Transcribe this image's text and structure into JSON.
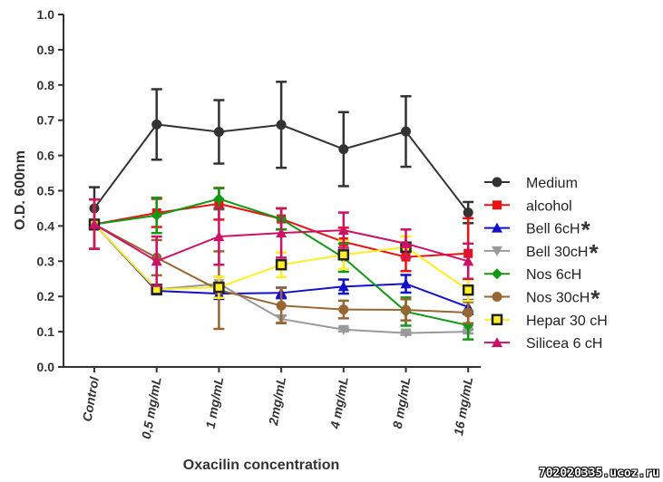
{
  "chart_data": {
    "type": "line",
    "xlabel": "Oxacilin concentration",
    "ylabel": "O.D. 600nm",
    "categories": [
      "Control",
      "0,5 mg/mL",
      "1 mg/mL",
      "2mg/mL",
      "4 mg/mL",
      "8 mg/mL",
      "16 mg/mL"
    ],
    "ylim": [
      0,
      1.0
    ],
    "yticks": [
      "0.0",
      "0.1",
      "0.2",
      "0.3",
      "0.4",
      "0.5",
      "0.6",
      "0.7",
      "0.8",
      "0.9",
      "1.0"
    ],
    "grid": false,
    "legend_position": "right",
    "series": [
      {
        "name": "Medium",
        "color": "#333333",
        "marker": "circle",
        "star": false,
        "values": [
          0.45,
          0.688,
          0.667,
          0.687,
          0.618,
          0.668,
          0.438
        ],
        "errors": [
          0.06,
          0.1,
          0.09,
          0.122,
          0.105,
          0.1,
          0.03
        ]
      },
      {
        "name": "alcohol",
        "color": "#ee1111",
        "marker": "square",
        "star": false,
        "values": [
          0.405,
          0.437,
          0.463,
          0.42,
          0.355,
          0.312,
          0.322
        ],
        "errors": [
          0.07,
          0.04,
          0.045,
          0.03,
          0.04,
          0.04,
          0.1
        ]
      },
      {
        "name": "Bell 6cH",
        "color": "#1111cc",
        "marker": "triangle-up",
        "star": true,
        "values": [
          0.405,
          0.216,
          0.208,
          0.21,
          0.228,
          0.236,
          0.17
        ],
        "errors": [
          0.07,
          0.01,
          0.015,
          0.015,
          0.02,
          0.025,
          0.02
        ]
      },
      {
        "name": "Bell 30cH",
        "color": "#999999",
        "marker": "triangle-down",
        "star": true,
        "values": [
          0.405,
          0.22,
          0.236,
          0.136,
          0.106,
          0.096,
          0.1
        ],
        "errors": [
          0.07,
          0.01,
          0.02,
          0.01,
          0.005,
          0.005,
          0.005
        ]
      },
      {
        "name": "Nos 6cH",
        "color": "#119911",
        "marker": "diamond",
        "star": false,
        "values": [
          0.405,
          0.43,
          0.477,
          0.42,
          0.31,
          0.157,
          0.118
        ],
        "errors": [
          0.07,
          0.05,
          0.03,
          0.03,
          0.04,
          0.04,
          0.04
        ]
      },
      {
        "name": "Nos 30cH",
        "color": "#996633",
        "marker": "circle",
        "star": true,
        "values": [
          0.405,
          0.31,
          0.218,
          0.174,
          0.163,
          0.162,
          0.154
        ],
        "errors": [
          0.07,
          0.05,
          0.11,
          0.05,
          0.025,
          0.03,
          0.03
        ]
      },
      {
        "name": "Hepar  30 cH",
        "color": "#ffee22",
        "marker": "square-open",
        "star": false,
        "values": [
          0.405,
          0.22,
          0.226,
          0.29,
          0.318,
          0.34,
          0.218
        ],
        "errors": [
          0.07,
          0.01,
          0.03,
          0.035,
          0.04,
          0.03,
          0.03
        ]
      },
      {
        "name": "Silicea 6 cH",
        "color": "#cc1166",
        "marker": "triangle-up",
        "star": false,
        "values": [
          0.405,
          0.3,
          0.37,
          0.38,
          0.388,
          0.35,
          0.3
        ],
        "errors": [
          0.07,
          0.07,
          0.08,
          0.07,
          0.05,
          0.04,
          0.05
        ]
      }
    ]
  },
  "watermark": "702020335.ucoz.ru"
}
